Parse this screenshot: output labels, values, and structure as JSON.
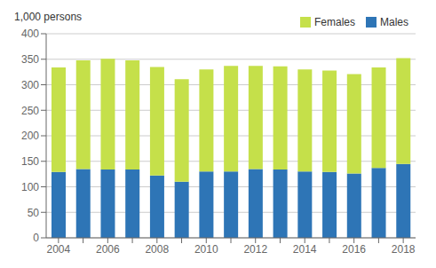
{
  "chart_data": {
    "type": "bar",
    "stacked": true,
    "ylabel": "1,000 persons",
    "categories": [
      "2004",
      null,
      "2006",
      null,
      "2008",
      null,
      "2010",
      null,
      "2012",
      null,
      "2014",
      null,
      "2016",
      null,
      "2018"
    ],
    "series": [
      {
        "name": "Males",
        "color": "#2E75B6",
        "values": [
          129,
          135,
          134,
          134,
          122,
          110,
          130,
          130,
          135,
          134,
          130,
          129,
          126,
          137,
          145
        ]
      },
      {
        "name": "Females",
        "color": "#C5E04A",
        "values": [
          205,
          213,
          217,
          214,
          213,
          201,
          200,
          207,
          202,
          202,
          200,
          199,
          195,
          197,
          207
        ]
      }
    ],
    "ylim": [
      0,
      400
    ],
    "yticks": [
      0,
      50,
      100,
      150,
      200,
      250,
      300,
      350,
      400
    ],
    "grid": true,
    "legend": "upper right"
  }
}
